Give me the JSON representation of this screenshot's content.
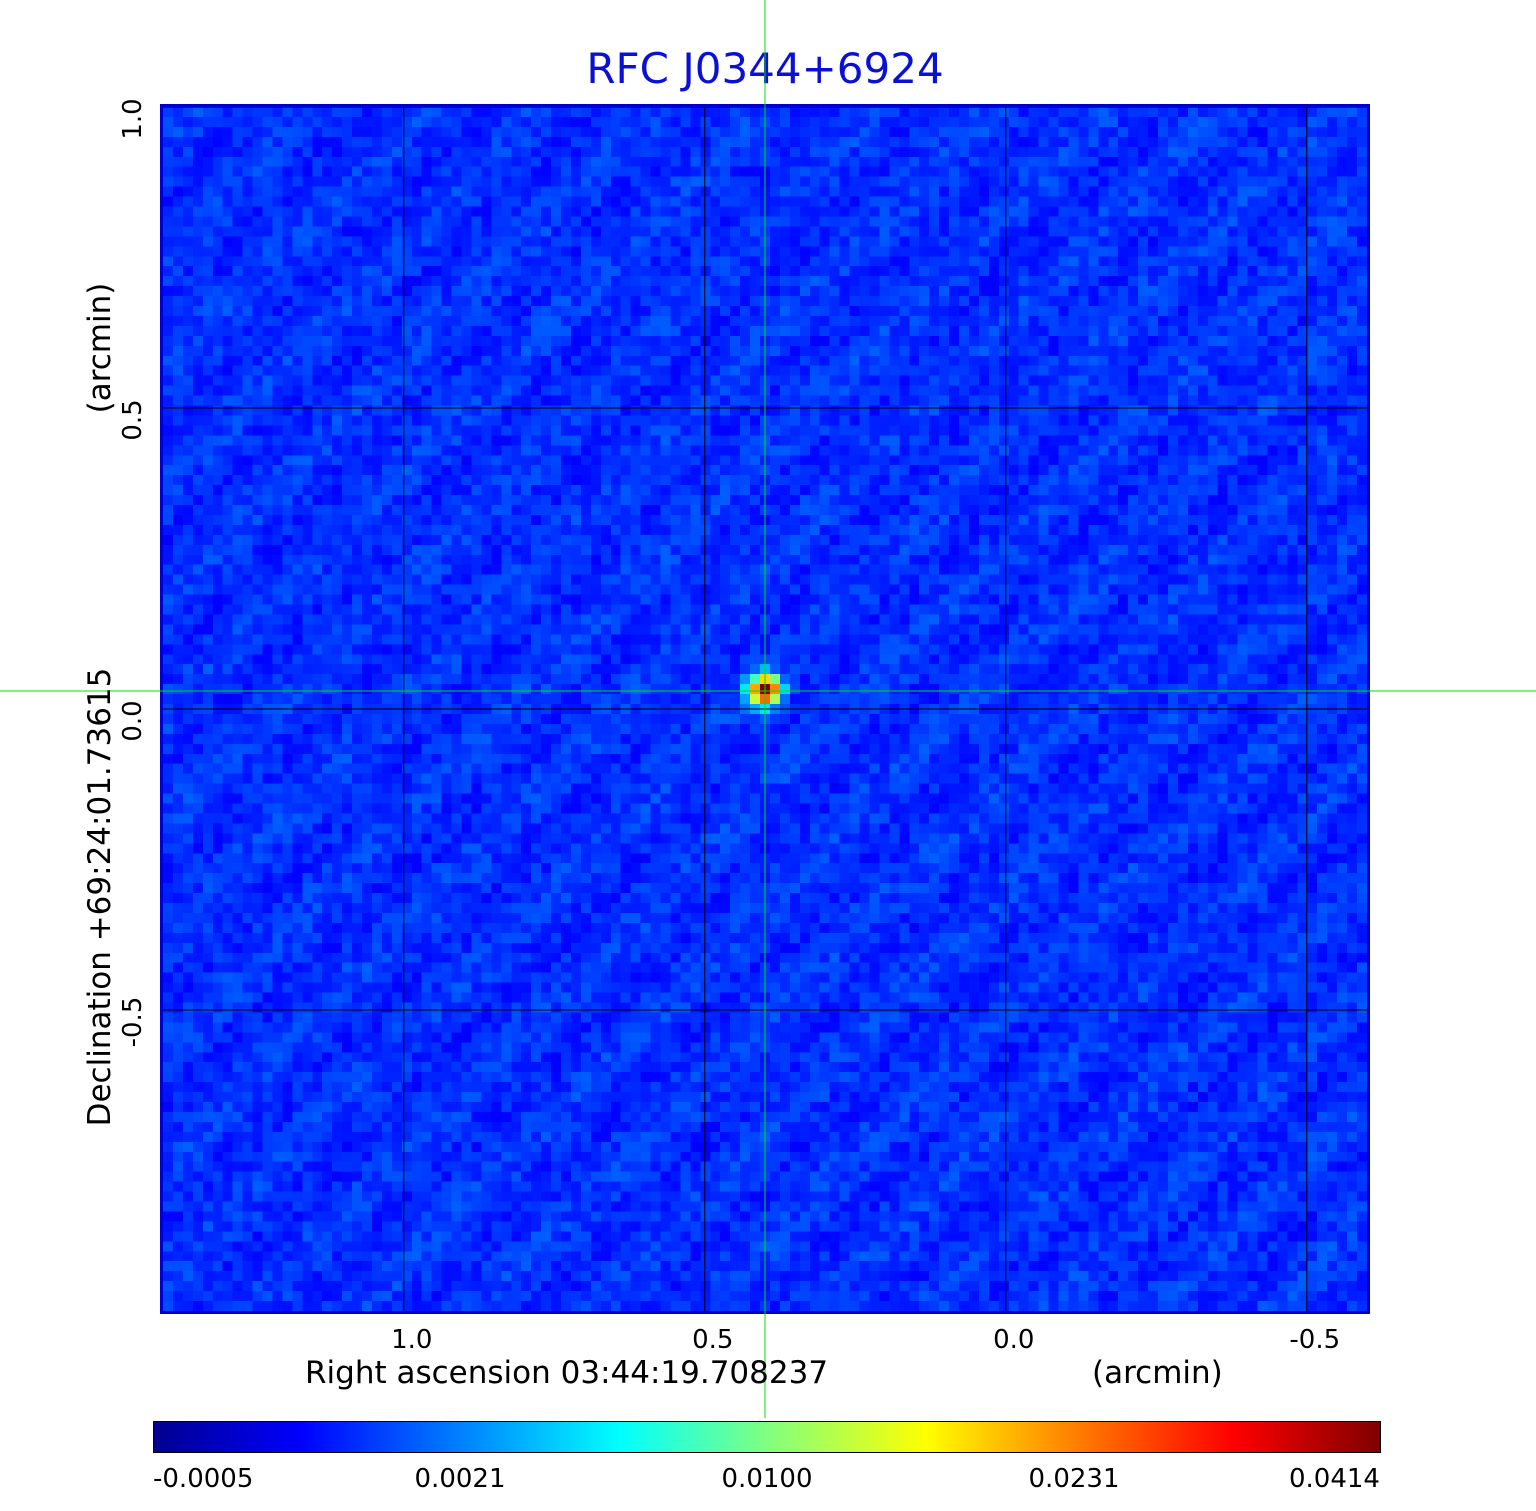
{
  "chart_data": {
    "type": "heatmap",
    "title": "RFC J0344+6924",
    "xlabel": "Right ascension  03:44:19.708237",
    "xunit": "(arcmin)",
    "ylabel": "Declination  +69:24:01.73615",
    "yunit": "(arcmin)",
    "x_ticks": [
      "1.0",
      "0.5",
      "0.0",
      "-0.5"
    ],
    "x_tick_values": [
      1.0,
      0.5,
      0.0,
      -0.5
    ],
    "y_ticks": [
      "1.0",
      "0.5",
      "0.0",
      "-0.5"
    ],
    "y_tick_values": [
      1.0,
      0.5,
      0.0,
      -0.5
    ],
    "xlim": [
      1.4,
      -0.6
    ],
    "ylim": [
      -1.0,
      1.0
    ],
    "grid": true,
    "crosshair": {
      "x": 0.4,
      "y": 0.03,
      "color": "#00e000"
    },
    "source_peak": {
      "x": 0.4,
      "y": 0.03,
      "value": 0.0414
    },
    "colorbar": {
      "tick_labels": [
        "-0.0005",
        "0.0021",
        "0.0100",
        "0.0231",
        "0.0414"
      ],
      "min": -0.0005,
      "max": 0.0414,
      "colormap": "jet"
    }
  },
  "colors": {
    "title": "#0a10d6",
    "frame": "#0000cc",
    "background_noise": "#1f3df2",
    "grid": "#000000",
    "crosshair": "#00e000"
  }
}
